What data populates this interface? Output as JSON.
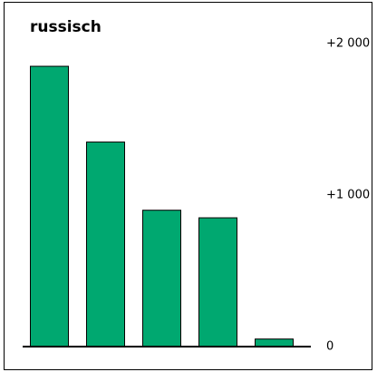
{
  "chart_data": {
    "type": "bar",
    "title": "russisch",
    "categories": [
      null,
      null,
      null,
      null,
      null
    ],
    "values": [
      1850,
      1350,
      900,
      850,
      50
    ],
    "color": "#00a870",
    "ylim": [
      0,
      2000
    ],
    "yticks": [
      {
        "value": 2000,
        "label": "+2 000"
      },
      {
        "value": 1000,
        "label": "+1 000"
      },
      0
    ],
    "grid": false
  }
}
